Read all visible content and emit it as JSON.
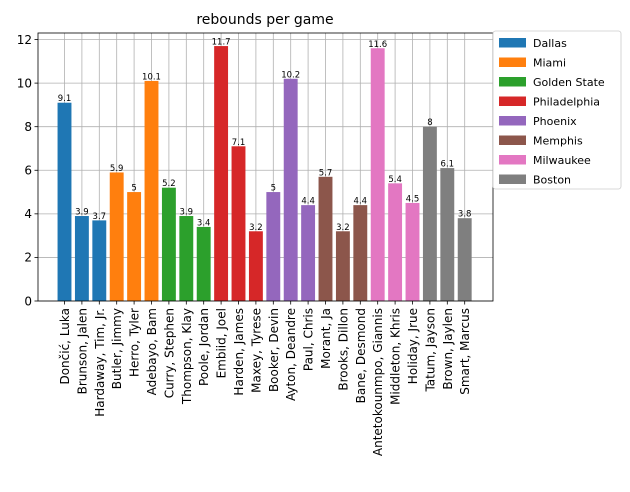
{
  "chart_data": {
    "type": "bar",
    "title": "rebounds per game",
    "xlabel": "",
    "ylabel": "",
    "ylim": [
      0,
      12.3
    ],
    "yticks": [
      0,
      2,
      4,
      6,
      8,
      10,
      12
    ],
    "grid": true,
    "legend_position": "outside-top-right",
    "categories": [
      "Dončić, Luka",
      "Brunson, Jalen",
      "Hardaway, Tim, Jr.",
      "Butler, Jimmy",
      "Herro, Tyler",
      "Adebayo, Bam",
      "Curry, Stephen",
      "Thompson, Klay",
      "Poole, Jordan",
      "Embiid, Joel",
      "Harden, James",
      "Maxey, Tyrese",
      "Booker, Devin",
      "Ayton, Deandre",
      "Paul, Chris",
      "Morant, Ja",
      "Brooks, Dillon",
      "Bane, Desmond",
      "Antetokounmpo, Giannis",
      "Middleton, Khris",
      "Holiday, Jrue",
      "Tatum, Jayson",
      "Brown, Jaylen",
      "Smart, Marcus"
    ],
    "values": [
      9.1,
      3.9,
      3.7,
      5.9,
      5,
      10.1,
      5.2,
      3.9,
      3.4,
      11.7,
      7.1,
      3.2,
      5,
      10.2,
      4.4,
      5.7,
      3.2,
      4.4,
      11.6,
      5.4,
      4.5,
      8,
      6.1,
      3.8
    ],
    "value_labels": [
      "9.1",
      "3.9",
      "3.7",
      "5.9",
      "5",
      "10.1",
      "5.2",
      "3.9",
      "3.4",
      "11.7",
      "7.1",
      "3.2",
      "5",
      "10.2",
      "4.4",
      "5.7",
      "3.2",
      "4.4",
      "11.6",
      "5.4",
      "4.5",
      "8",
      "6.1",
      "3.8"
    ],
    "groups": [
      0,
      0,
      0,
      1,
      1,
      1,
      2,
      2,
      2,
      3,
      3,
      3,
      4,
      4,
      4,
      5,
      5,
      5,
      6,
      6,
      6,
      7,
      7,
      7
    ],
    "series": [
      {
        "name": "Dallas",
        "color": "#1f77b4"
      },
      {
        "name": "Miami",
        "color": "#ff7f0e"
      },
      {
        "name": "Golden State",
        "color": "#2ca02c"
      },
      {
        "name": "Philadelphia",
        "color": "#d62728"
      },
      {
        "name": "Phoenix",
        "color": "#9467bd"
      },
      {
        "name": "Memphis",
        "color": "#8c564b"
      },
      {
        "name": "Milwaukee",
        "color": "#e377c2"
      },
      {
        "name": "Boston",
        "color": "#7f7f7f"
      }
    ]
  }
}
